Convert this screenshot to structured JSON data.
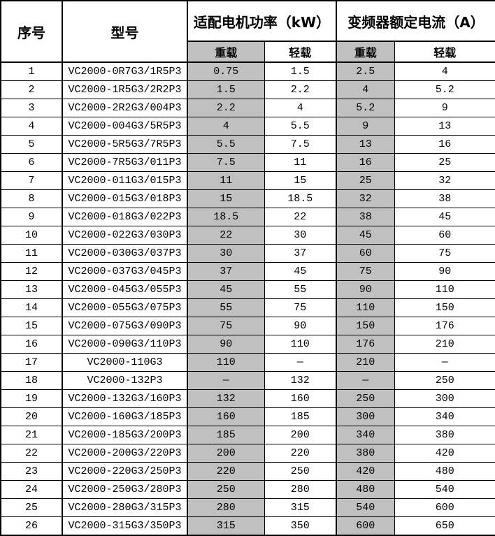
{
  "table": {
    "header": {
      "index_label": "序号",
      "model_label": "型号",
      "power_group_label": "适配电机功率（kW）",
      "current_group_label": "变频器额定电流（A）",
      "heavy_label": "重载",
      "light_label": "轻载"
    },
    "colors": {
      "heavy_column_bg": "#c0c0c0",
      "border": "#000000",
      "table_bg": "#ffffff"
    },
    "rows": [
      {
        "no": "1",
        "model": "VC2000-0R7G3/1R5P3",
        "power_heavy": "0.75",
        "power_light": "1.5",
        "current_heavy": "2.5",
        "current_light": "4"
      },
      {
        "no": "2",
        "model": "VC2000-1R5G3/2R2P3",
        "power_heavy": "1.5",
        "power_light": "2.2",
        "current_heavy": "4",
        "current_light": "5.2"
      },
      {
        "no": "3",
        "model": "VC2000-2R2G3/004P3",
        "power_heavy": "2.2",
        "power_light": "4",
        "current_heavy": "5.2",
        "current_light": "9"
      },
      {
        "no": "4",
        "model": "VC2000-004G3/5R5P3",
        "power_heavy": "4",
        "power_light": "5.5",
        "current_heavy": "9",
        "current_light": "13"
      },
      {
        "no": "5",
        "model": "VC2000-5R5G3/7R5P3",
        "power_heavy": "5.5",
        "power_light": "7.5",
        "current_heavy": "13",
        "current_light": "16"
      },
      {
        "no": "6",
        "model": "VC2000-7R5G3/011P3",
        "power_heavy": "7.5",
        "power_light": "11",
        "current_heavy": "16",
        "current_light": "25"
      },
      {
        "no": "7",
        "model": "VC2000-011G3/015P3",
        "power_heavy": "11",
        "power_light": "15",
        "current_heavy": "25",
        "current_light": "32"
      },
      {
        "no": "8",
        "model": "VC2000-015G3/018P3",
        "power_heavy": "15",
        "power_light": "18.5",
        "current_heavy": "32",
        "current_light": "38"
      },
      {
        "no": "9",
        "model": "VC2000-018G3/022P3",
        "power_heavy": "18.5",
        "power_light": "22",
        "current_heavy": "38",
        "current_light": "45"
      },
      {
        "no": "10",
        "model": "VC2000-022G3/030P3",
        "power_heavy": "22",
        "power_light": "30",
        "current_heavy": "45",
        "current_light": "60"
      },
      {
        "no": "11",
        "model": "VC2000-030G3/037P3",
        "power_heavy": "30",
        "power_light": "37",
        "current_heavy": "60",
        "current_light": "75"
      },
      {
        "no": "12",
        "model": "VC2000-037G3/045P3",
        "power_heavy": "37",
        "power_light": "45",
        "current_heavy": "75",
        "current_light": "90"
      },
      {
        "no": "13",
        "model": "VC2000-045G3/055P3",
        "power_heavy": "45",
        "power_light": "55",
        "current_heavy": "90",
        "current_light": "110"
      },
      {
        "no": "14",
        "model": "VC2000-055G3/075P3",
        "power_heavy": "55",
        "power_light": "75",
        "current_heavy": "110",
        "current_light": "150"
      },
      {
        "no": "15",
        "model": "VC2000-075G3/090P3",
        "power_heavy": "75",
        "power_light": "90",
        "current_heavy": "150",
        "current_light": "176"
      },
      {
        "no": "16",
        "model": "VC2000-090G3/110P3",
        "power_heavy": "90",
        "power_light": "110",
        "current_heavy": "176",
        "current_light": "210"
      },
      {
        "no": "17",
        "model": "VC2000-110G3",
        "power_heavy": "110",
        "power_light": "—",
        "current_heavy": "210",
        "current_light": "—"
      },
      {
        "no": "18",
        "model": "VC2000-132P3",
        "power_heavy": "—",
        "power_light": "132",
        "current_heavy": "—",
        "current_light": "250"
      },
      {
        "no": "19",
        "model": "VC2000-132G3/160P3",
        "power_heavy": "132",
        "power_light": "160",
        "current_heavy": "250",
        "current_light": "300"
      },
      {
        "no": "20",
        "model": "VC2000-160G3/185P3",
        "power_heavy": "160",
        "power_light": "185",
        "current_heavy": "300",
        "current_light": "340"
      },
      {
        "no": "21",
        "model": "VC2000-185G3/200P3",
        "power_heavy": "185",
        "power_light": "200",
        "current_heavy": "340",
        "current_light": "380"
      },
      {
        "no": "22",
        "model": "VC2000-200G3/220P3",
        "power_heavy": "200",
        "power_light": "220",
        "current_heavy": "380",
        "current_light": "420"
      },
      {
        "no": "23",
        "model": "VC2000-220G3/250P3",
        "power_heavy": "220",
        "power_light": "250",
        "current_heavy": "420",
        "current_light": "480"
      },
      {
        "no": "24",
        "model": "VC2000-250G3/280P3",
        "power_heavy": "250",
        "power_light": "280",
        "current_heavy": "480",
        "current_light": "540"
      },
      {
        "no": "25",
        "model": "VC2000-280G3/315P3",
        "power_heavy": "280",
        "power_light": "315",
        "current_heavy": "540",
        "current_light": "600"
      },
      {
        "no": "26",
        "model": "VC2000-315G3/350P3",
        "power_heavy": "315",
        "power_light": "350",
        "current_heavy": "600",
        "current_light": "650"
      }
    ]
  }
}
